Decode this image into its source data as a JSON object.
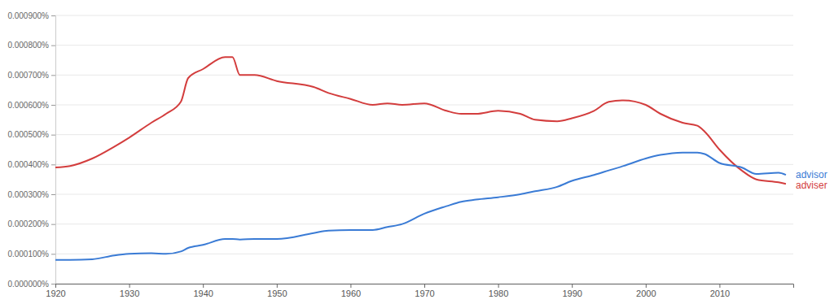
{
  "chart_data": {
    "type": "line",
    "x": [
      1920,
      1922,
      1925,
      1928,
      1930,
      1933,
      1935,
      1937,
      1938,
      1940,
      1943,
      1944,
      1945,
      1947,
      1950,
      1955,
      1957,
      1960,
      1963,
      1965,
      1967,
      1970,
      1973,
      1975,
      1977,
      1980,
      1983,
      1985,
      1988,
      1990,
      1993,
      1995,
      1997,
      2000,
      2002,
      2005,
      2007,
      2008,
      2010,
      2013,
      2015,
      2018,
      2019
    ],
    "series": [
      {
        "name": "adviser",
        "color": "#d33d3d",
        "values": [
          0.00039,
          0.000395,
          0.00042,
          0.00046,
          0.00049,
          0.00054,
          0.00057,
          0.00061,
          0.00069,
          0.00072,
          0.00076,
          0.00076,
          0.0007,
          0.0007,
          0.00068,
          0.00066,
          0.00064,
          0.00062,
          0.0006,
          0.000605,
          0.0006,
          0.000605,
          0.00058,
          0.00057,
          0.00057,
          0.00058,
          0.00057,
          0.00055,
          0.000545,
          0.000555,
          0.00058,
          0.00061,
          0.000615,
          0.0006,
          0.00057,
          0.00054,
          0.00053,
          0.00051,
          0.00045,
          0.00038,
          0.00035,
          0.00034,
          0.000335
        ]
      },
      {
        "name": "advisor",
        "color": "#3a7bd5",
        "values": [
          8e-05,
          8e-05,
          8.2e-05,
          9.5e-05,
          0.0001,
          0.000102,
          0.0001,
          0.000108,
          0.00012,
          0.00013,
          0.00015,
          0.00015,
          0.000148,
          0.00015,
          0.00015,
          0.00017,
          0.000178,
          0.00018,
          0.00018,
          0.00019,
          0.0002,
          0.000235,
          0.00026,
          0.000275,
          0.000282,
          0.00029,
          0.0003,
          0.00031,
          0.000325,
          0.000345,
          0.000365,
          0.00038,
          0.000395,
          0.00042,
          0.000432,
          0.00044,
          0.00044,
          0.000435,
          0.000405,
          0.00039,
          0.000368,
          0.000372,
          0.000365
        ]
      }
    ],
    "xlim": [
      1920,
      2020
    ],
    "xticks": [
      1920,
      1930,
      1940,
      1950,
      1960,
      1970,
      1980,
      1990,
      2000,
      2010
    ],
    "ylim": [
      0,
      0.0009
    ],
    "yticks": [
      {
        "value": 0,
        "label": "0.000000%"
      },
      {
        "value": 0.0001,
        "label": "0.000100%"
      },
      {
        "value": 0.0002,
        "label": "0.000200%"
      },
      {
        "value": 0.0003,
        "label": "0.000300%"
      },
      {
        "value": 0.0004,
        "label": "0.000400%"
      },
      {
        "value": 0.0005,
        "label": "0.000500%"
      },
      {
        "value": 0.0006,
        "label": "0.000600%"
      },
      {
        "value": 0.0007,
        "label": "0.000700%"
      },
      {
        "value": 0.0008,
        "label": "0.000800%"
      },
      {
        "value": 0.0009,
        "label": "0.000900%"
      }
    ],
    "grid": true
  }
}
